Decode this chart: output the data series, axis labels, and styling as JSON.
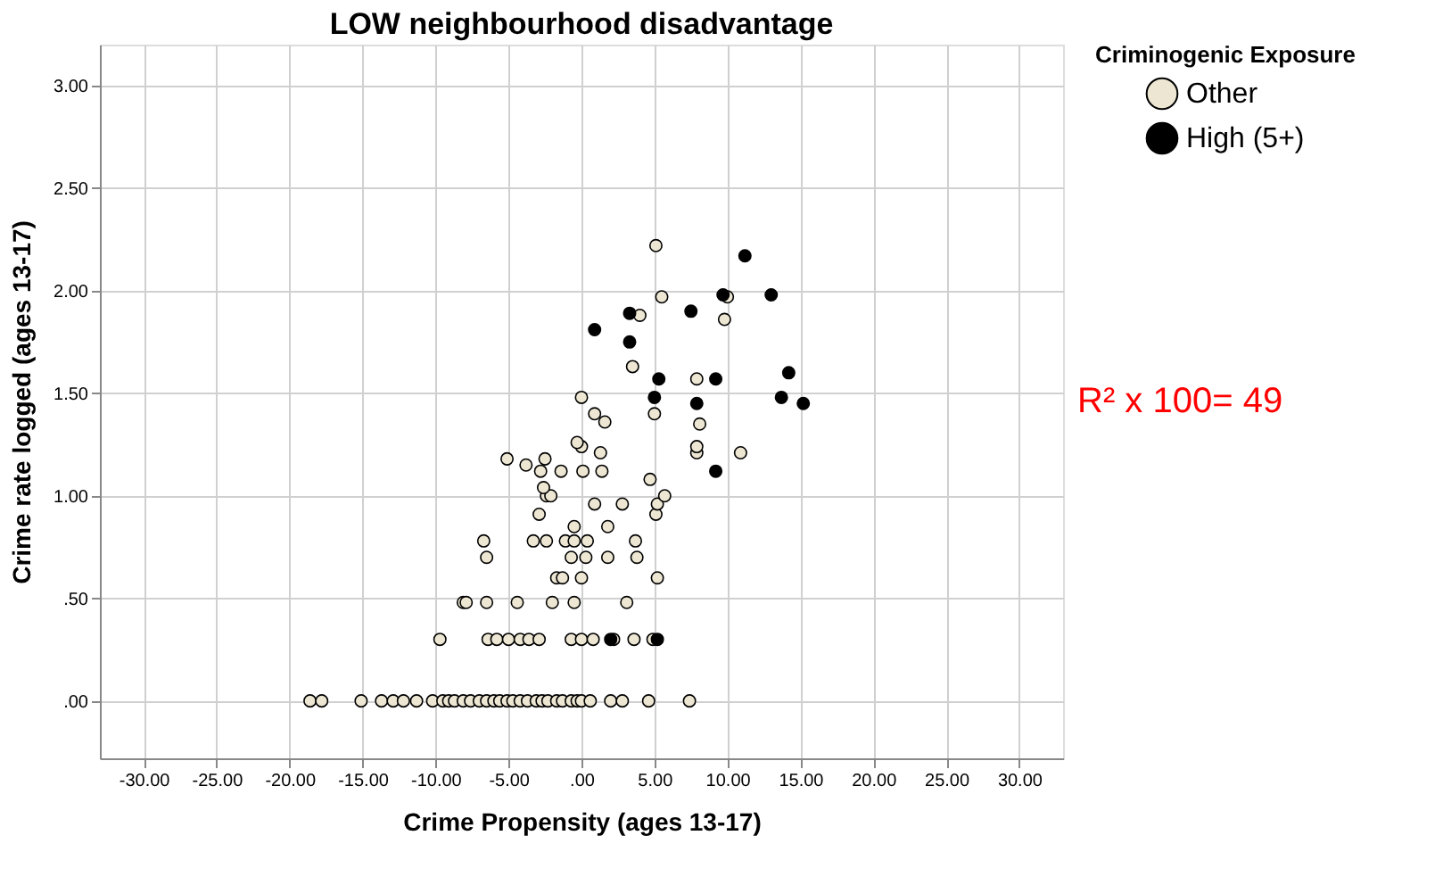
{
  "chart_data": {
    "type": "scatter",
    "title": "LOW neighbourhood disadvantage",
    "xlabel": "Crime Propensity (ages 13-17)",
    "ylabel": "Crime rate logged (ages 13-17)",
    "legend_title": "Criminogenic Exposure",
    "legend": "top right",
    "grid": true,
    "marker": "circle",
    "annotations": [
      "R² x 100= 49"
    ],
    "xlim": [
      -33,
      33
    ],
    "ylim": [
      -0.28,
      3.2
    ],
    "xticks": [
      {
        "value": -30,
        "label": "-30.00"
      },
      {
        "value": -25,
        "label": "-25.00"
      },
      {
        "value": -20,
        "label": "-20.00"
      },
      {
        "value": -15,
        "label": "-15.00"
      },
      {
        "value": -10,
        "label": "-10.00"
      },
      {
        "value": -5,
        "label": "-5.00"
      },
      {
        "value": 0,
        "label": ".00"
      },
      {
        "value": 5,
        "label": "5.00"
      },
      {
        "value": 10,
        "label": "10.00"
      },
      {
        "value": 15,
        "label": "15.00"
      },
      {
        "value": 20,
        "label": "20.00"
      },
      {
        "value": 25,
        "label": "25.00"
      },
      {
        "value": 30,
        "label": "30.00"
      }
    ],
    "yticks": [
      {
        "value": 0,
        "label": ".00"
      },
      {
        "value": 0.5,
        "label": ".50"
      },
      {
        "value": 1,
        "label": "1.00"
      },
      {
        "value": 1.5,
        "label": "1.50"
      },
      {
        "value": 2,
        "label": "2.00"
      },
      {
        "value": 2.5,
        "label": "2.50"
      },
      {
        "value": 3,
        "label": "3.00"
      }
    ],
    "series": [
      {
        "name": "Other",
        "color": "#ece6d2",
        "x": [
          -18.6,
          -17.8,
          -15.1,
          -13.7,
          -12.9,
          -12.2,
          -11.3,
          -10.2,
          -9.5,
          -9.1,
          -8.7,
          -8.1,
          -7.6,
          -7.0,
          -6.5,
          -6.0,
          -5.6,
          -5.1,
          -4.7,
          -4.2,
          -3.7,
          -3.1,
          -2.7,
          -2.3,
          -1.7,
          -1.3,
          -0.7,
          -0.3,
          0.0,
          0.6,
          2.0,
          2.8,
          4.6,
          7.4,
          -9.7,
          -6.4,
          -5.8,
          -5.0,
          -4.2,
          -3.6,
          -2.9,
          -0.7,
          0.0,
          0.8,
          2.2,
          3.6,
          4.9,
          -8.1,
          -7.9,
          -6.5,
          -4.4,
          -2.0,
          -0.5,
          3.1,
          -1.7,
          -1.3,
          0.0,
          5.2,
          -6.5,
          -0.7,
          0.3,
          1.8,
          3.8,
          -6.7,
          -3.3,
          -2.4,
          -1.1,
          -0.5,
          0.4,
          3.7,
          -0.5,
          1.8,
          -2.9,
          5.1,
          0.9,
          2.8,
          5.2,
          -2.4,
          -2.1,
          5.7,
          -2.6,
          4.7,
          -2.8,
          -1.4,
          0.1,
          1.4,
          -5.1,
          -2.5,
          -3.8,
          1.3,
          7.9,
          10.9,
          0.0,
          7.9,
          -0.3,
          8.1,
          1.6,
          0.9,
          5.0,
          0.0,
          7.9,
          3.5,
          9.8,
          4.0,
          5.5,
          10.0,
          5.1
        ],
        "values": [
          0,
          0,
          0,
          0,
          0,
          0,
          0,
          0,
          0,
          0,
          0,
          0,
          0,
          0,
          0,
          0,
          0,
          0,
          0,
          0,
          0,
          0,
          0,
          0,
          0,
          0,
          0,
          0,
          0,
          0,
          0,
          0,
          0,
          0,
          0.3,
          0.3,
          0.3,
          0.3,
          0.3,
          0.3,
          0.3,
          0.3,
          0.3,
          0.3,
          0.3,
          0.3,
          0.3,
          0.48,
          0.48,
          0.48,
          0.48,
          0.48,
          0.48,
          0.48,
          0.6,
          0.6,
          0.6,
          0.6,
          0.7,
          0.7,
          0.7,
          0.7,
          0.7,
          0.78,
          0.78,
          0.78,
          0.78,
          0.78,
          0.78,
          0.78,
          0.85,
          0.85,
          0.91,
          0.91,
          0.96,
          0.96,
          0.96,
          1.0,
          1.0,
          1.0,
          1.04,
          1.08,
          1.12,
          1.12,
          1.12,
          1.12,
          1.18,
          1.18,
          1.15,
          1.21,
          1.21,
          1.21,
          1.24,
          1.24,
          1.26,
          1.35,
          1.36,
          1.4,
          1.4,
          1.48,
          1.57,
          1.63,
          1.86,
          1.88,
          1.97,
          1.97,
          2.22
        ]
      },
      {
        "name": "High (5+)",
        "color": "#000000",
        "x": [
          2.0,
          5.2,
          9.2,
          7.9,
          15.2,
          5.0,
          13.7,
          5.3,
          9.2,
          14.2,
          3.3,
          0.9,
          3.3,
          7.5,
          9.7,
          13.0,
          11.2
        ],
        "values": [
          0.3,
          0.3,
          1.12,
          1.45,
          1.45,
          1.48,
          1.48,
          1.57,
          1.57,
          1.6,
          1.75,
          1.81,
          1.89,
          1.9,
          1.98,
          1.98,
          2.17
        ]
      }
    ]
  }
}
